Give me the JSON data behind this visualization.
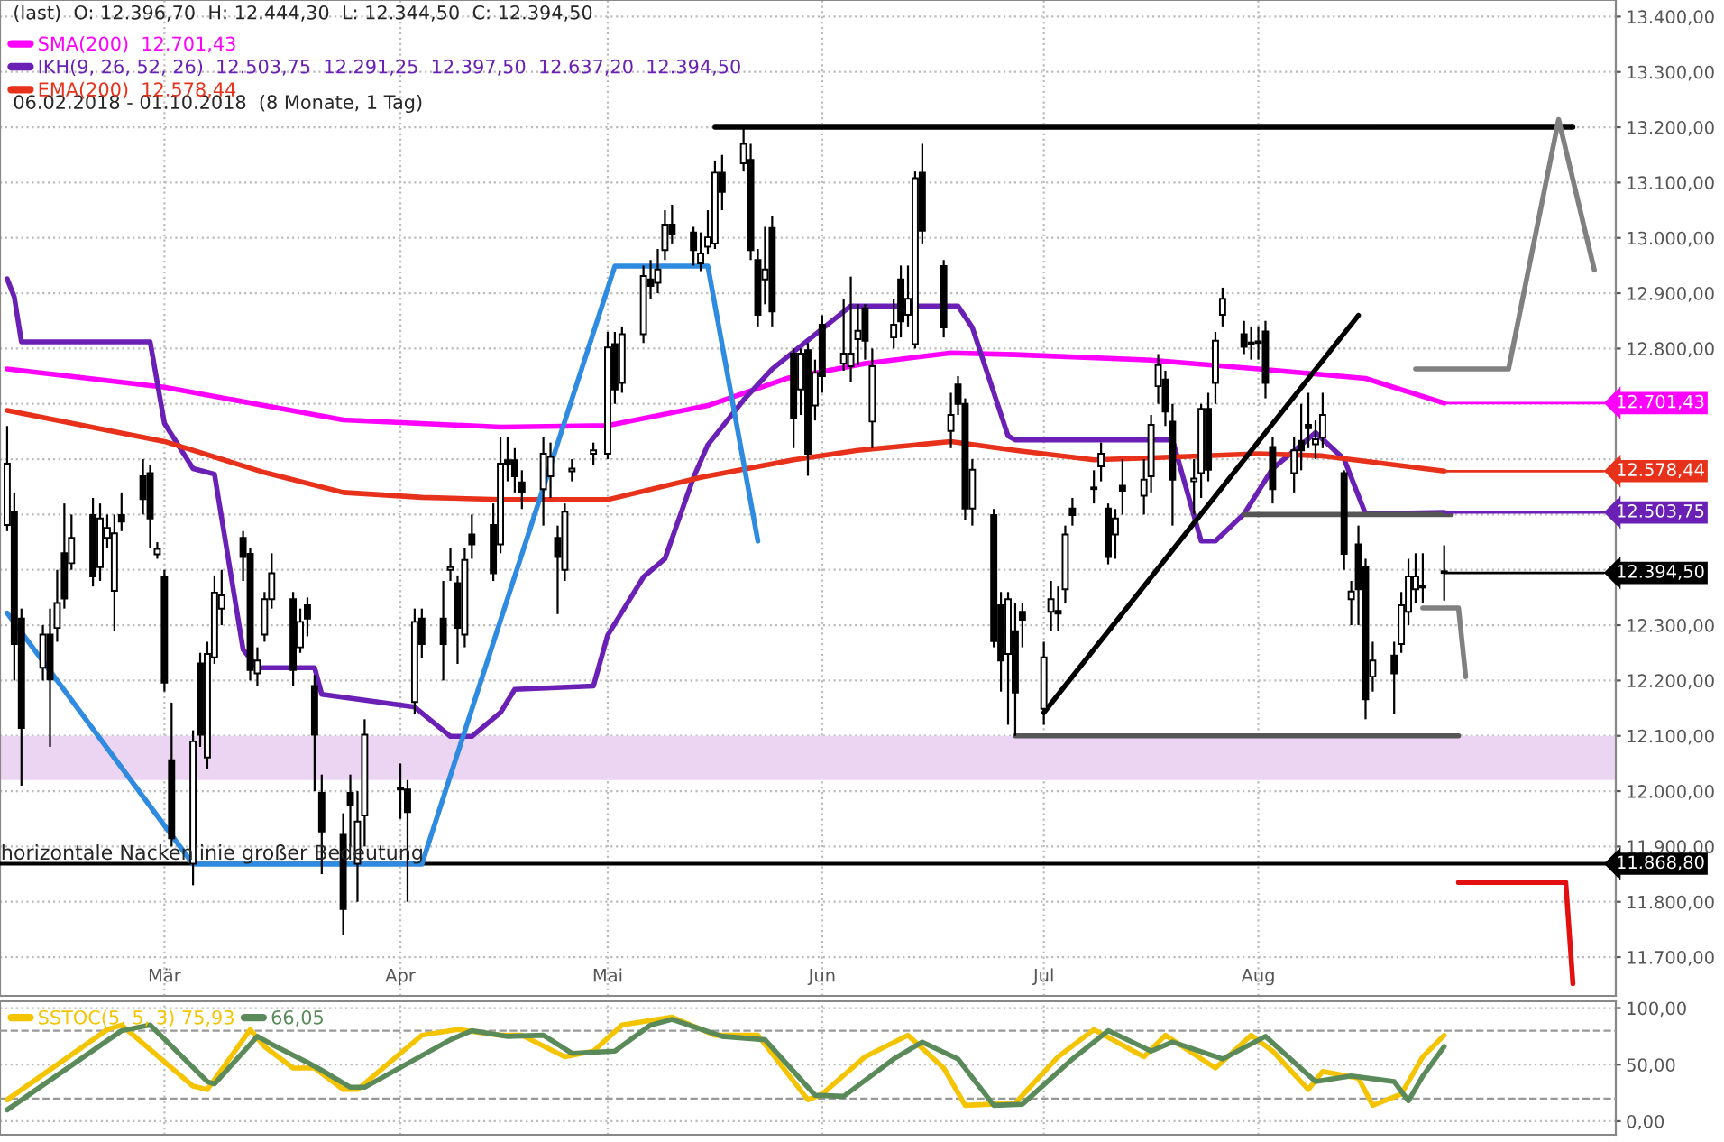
{
  "chart_data": [
    {
      "type": "candlestick",
      "title": "(last)  O: 12.396,70  H: 12.444,30  L: 12.344,50  C: 12.394,50",
      "subtitle": "06.02.2018 - 01.10.2018  (8 Monate, 1 Tag)",
      "x": [
        "2018-02-07",
        "2018-02-08",
        "2018-02-09",
        "2018-02-12",
        "2018-02-13",
        "2018-02-14",
        "2018-02-15",
        "2018-02-16",
        "2018-02-19",
        "2018-02-20",
        "2018-02-21",
        "2018-02-22",
        "2018-02-23",
        "2018-02-26",
        "2018-02-27",
        "2018-02-28",
        "2018-03-01",
        "2018-03-02",
        "2018-03-05",
        "2018-03-06",
        "2018-03-07",
        "2018-03-08",
        "2018-03-09",
        "2018-03-12",
        "2018-03-13",
        "2018-03-14",
        "2018-03-15",
        "2018-03-16",
        "2018-03-19",
        "2018-03-20",
        "2018-03-21",
        "2018-03-22",
        "2018-03-23",
        "2018-03-26",
        "2018-03-27",
        "2018-03-28",
        "2018-03-29",
        "2018-04-03",
        "2018-04-04",
        "2018-04-05",
        "2018-04-06",
        "2018-04-09",
        "2018-04-10",
        "2018-04-11",
        "2018-04-12",
        "2018-04-13",
        "2018-04-16",
        "2018-04-17",
        "2018-04-18",
        "2018-04-19",
        "2018-04-20",
        "2018-04-23",
        "2018-04-24",
        "2018-04-25",
        "2018-04-26",
        "2018-04-27",
        "2018-04-30",
        "2018-05-02",
        "2018-05-03",
        "2018-05-04",
        "2018-05-07",
        "2018-05-08",
        "2018-05-09",
        "2018-05-10",
        "2018-05-11",
        "2018-05-14",
        "2018-05-15",
        "2018-05-16",
        "2018-05-17",
        "2018-05-18",
        "2018-05-21",
        "2018-05-22",
        "2018-05-23",
        "2018-05-24",
        "2018-05-25",
        "2018-05-28",
        "2018-05-29",
        "2018-05-30",
        "2018-05-31",
        "2018-06-01",
        "2018-06-04",
        "2018-06-05",
        "2018-06-06",
        "2018-06-07",
        "2018-06-08",
        "2018-06-11",
        "2018-06-12",
        "2018-06-13",
        "2018-06-14",
        "2018-06-15",
        "2018-06-18",
        "2018-06-19",
        "2018-06-20",
        "2018-06-21",
        "2018-06-22",
        "2018-06-25",
        "2018-06-26",
        "2018-06-27",
        "2018-06-28",
        "2018-06-29",
        "2018-07-02",
        "2018-07-03",
        "2018-07-04",
        "2018-07-05",
        "2018-07-06",
        "2018-07-09",
        "2018-07-10",
        "2018-07-11",
        "2018-07-12",
        "2018-07-13",
        "2018-07-16",
        "2018-07-17",
        "2018-07-18",
        "2018-07-19",
        "2018-07-20",
        "2018-07-23",
        "2018-07-24",
        "2018-07-25",
        "2018-07-26",
        "2018-07-27",
        "2018-07-30",
        "2018-07-31",
        "2018-08-01",
        "2018-08-02",
        "2018-08-03",
        "2018-08-06",
        "2018-08-07",
        "2018-08-08",
        "2018-08-09",
        "2018-08-10",
        "2018-08-13",
        "2018-08-14",
        "2018-08-15",
        "2018-08-16",
        "2018-08-17",
        "2018-08-20",
        "2018-08-21",
        "2018-08-22",
        "2018-08-23",
        "2018-08-24",
        "2018-08-27"
      ],
      "ohlc": [
        [
          12481,
          12660,
          12470,
          12592
        ],
        [
          12505,
          12540,
          12200,
          12266
        ],
        [
          12312,
          12330,
          12010,
          12114
        ],
        [
          12223,
          12300,
          12200,
          12283
        ],
        [
          12283,
          12330,
          12080,
          12202
        ],
        [
          12295,
          12400,
          12270,
          12340
        ],
        [
          12430,
          12520,
          12330,
          12348
        ],
        [
          12412,
          12500,
          12400,
          12458
        ],
        [
          12499,
          12530,
          12370,
          12388
        ],
        [
          12405,
          12520,
          12380,
          12493
        ],
        [
          12458,
          12500,
          12440,
          12476
        ],
        [
          12362,
          12500,
          12290,
          12466
        ],
        [
          12499,
          12540,
          12470,
          12487
        ],
        [
          12569,
          12600,
          12500,
          12528
        ],
        [
          12575,
          12590,
          12440,
          12493
        ],
        [
          12428,
          12450,
          12420,
          12438
        ],
        [
          12388,
          12400,
          12180,
          12196
        ],
        [
          12056,
          12160,
          11900,
          11915
        ],
        [
          11869,
          12110,
          11830,
          12090
        ],
        [
          12231,
          12250,
          12080,
          12102
        ],
        [
          12061,
          12270,
          12040,
          12248
        ],
        [
          12242,
          12390,
          12230,
          12359
        ],
        [
          12330,
          12400,
          12300,
          12354
        ],
        [
          12458,
          12470,
          12380,
          12423
        ],
        [
          12429,
          12440,
          12200,
          12219
        ],
        [
          12213,
          12260,
          12190,
          12236
        ],
        [
          12283,
          12360,
          12270,
          12347
        ],
        [
          12347,
          12430,
          12330,
          12394
        ],
        [
          12347,
          12360,
          12190,
          12219
        ],
        [
          12260,
          12330,
          12250,
          12306
        ],
        [
          12336,
          12350,
          12280,
          12312
        ],
        [
          12190,
          12210,
          12000,
          12102
        ],
        [
          11997,
          12030,
          11850,
          11927
        ],
        [
          11921,
          11960,
          11740,
          11787
        ],
        [
          11997,
          12030,
          11900,
          11974
        ],
        [
          11869,
          12000,
          11800,
          11945
        ],
        [
          11956,
          12130,
          11900,
          12102
        ],
        [
          12003,
          12050,
          11950,
          12004
        ],
        [
          12003,
          12020,
          11800,
          11962
        ],
        [
          12161,
          12330,
          12140,
          12306
        ],
        [
          12312,
          12330,
          12240,
          12266
        ],
        [
          12312,
          12380,
          12200,
          12266
        ],
        [
          12400,
          12440,
          12380,
          12405
        ],
        [
          12376,
          12390,
          12230,
          12295
        ],
        [
          12283,
          12440,
          12260,
          12418
        ],
        [
          12464,
          12500,
          12420,
          12446
        ],
        [
          12481,
          12520,
          12380,
          12394
        ],
        [
          12446,
          12640,
          12430,
          12592
        ],
        [
          12598,
          12640,
          12560,
          12592
        ],
        [
          12598,
          12620,
          12540,
          12569
        ],
        [
          12558,
          12580,
          12510,
          12540
        ],
        [
          12546,
          12640,
          12480,
          12610
        ],
        [
          12569,
          12630,
          12530,
          12604
        ],
        [
          12458,
          12480,
          12320,
          12423
        ],
        [
          12400,
          12520,
          12380,
          12505
        ],
        [
          12578,
          12600,
          12560,
          12583
        ],
        [
          12610,
          12630,
          12590,
          12616
        ],
        [
          12610,
          12830,
          12600,
          12802
        ],
        [
          12808,
          12830,
          12700,
          12726
        ],
        [
          12738,
          12840,
          12720,
          12826
        ],
        [
          12826,
          12950,
          12810,
          12931
        ],
        [
          12925,
          12960,
          12890,
          12913
        ],
        [
          12919,
          12980,
          12900,
          12943
        ],
        [
          12978,
          13050,
          12960,
          13024
        ],
        [
          13024,
          13060,
          12990,
          13007
        ],
        [
          13010,
          13020,
          12950,
          12978
        ],
        [
          12954,
          13010,
          12940,
          12972
        ],
        [
          12984,
          13050,
          12970,
          13001
        ],
        [
          12990,
          13140,
          12980,
          13118
        ],
        [
          13118,
          13150,
          13050,
          13083
        ],
        [
          13135,
          13200,
          13120,
          13170
        ],
        [
          13141,
          13170,
          12960,
          12978
        ],
        [
          12960,
          12980,
          12840,
          12861
        ],
        [
          12925,
          13020,
          12880,
          12943
        ],
        [
          13018,
          13040,
          12840,
          12867
        ],
        [
          12791,
          12800,
          12620,
          12674
        ],
        [
          12726,
          12800,
          12680,
          12791
        ],
        [
          12797,
          12810,
          12570,
          12610
        ],
        [
          12697,
          12780,
          12670,
          12756
        ],
        [
          12843,
          12860,
          12720,
          12750
        ],
        [
          12773,
          12890,
          12760,
          12791
        ],
        [
          12768,
          12930,
          12740,
          12791
        ],
        [
          12817,
          12880,
          12770,
          12832
        ],
        [
          12873,
          12880,
          12780,
          12814
        ],
        [
          12668,
          12800,
          12620,
          12768
        ],
        [
          12820,
          12890,
          12800,
          12843
        ],
        [
          12925,
          12950,
          12820,
          12849
        ],
        [
          12861,
          12950,
          12840,
          12890
        ],
        [
          12808,
          13120,
          12800,
          13108
        ],
        [
          13118,
          13170,
          12990,
          13013
        ],
        [
          12949,
          12960,
          12820,
          12838
        ],
        [
          12651,
          12720,
          12620,
          12680
        ],
        [
          12735,
          12750,
          12680,
          12700
        ],
        [
          12700,
          12710,
          12490,
          12511
        ],
        [
          12511,
          12600,
          12480,
          12581
        ],
        [
          12499,
          12510,
          12260,
          12271
        ],
        [
          12336,
          12360,
          12180,
          12236
        ],
        [
          12248,
          12360,
          12120,
          12347
        ],
        [
          12289,
          12340,
          12100,
          12178
        ],
        [
          12324,
          12340,
          12260,
          12310
        ],
        [
          12149,
          12270,
          12120,
          12242
        ],
        [
          12324,
          12380,
          12290,
          12347
        ],
        [
          12326,
          12370,
          12290,
          12321
        ],
        [
          12365,
          12480,
          12340,
          12464
        ],
        [
          12511,
          12530,
          12480,
          12499
        ],
        [
          12546,
          12580,
          12520,
          12547
        ],
        [
          12587,
          12630,
          12560,
          12610
        ],
        [
          12511,
          12520,
          12410,
          12423
        ],
        [
          12464,
          12510,
          12420,
          12493
        ],
        [
          12552,
          12600,
          12500,
          12543
        ],
        [
          12534,
          12600,
          12500,
          12563
        ],
        [
          12569,
          12680,
          12540,
          12662
        ],
        [
          12732,
          12790,
          12700,
          12770
        ],
        [
          12744,
          12760,
          12660,
          12686
        ],
        [
          12668,
          12700,
          12480,
          12563
        ],
        [
          12560,
          12600,
          12500,
          12565
        ],
        [
          12575,
          12700,
          12530,
          12691
        ],
        [
          12691,
          12720,
          12560,
          12581
        ],
        [
          12738,
          12830,
          12700,
          12814
        ],
        [
          12861,
          12910,
          12840,
          12890
        ],
        [
          12826,
          12850,
          12790,
          12803
        ],
        [
          12808,
          12840,
          12780,
          12809
        ],
        [
          12810,
          12840,
          12780,
          12812
        ],
        [
          12831,
          12850,
          12710,
          12738
        ],
        [
          12622,
          12640,
          12520,
          12546
        ],
        [
          12575,
          12640,
          12540,
          12616
        ],
        [
          12633,
          12700,
          12580,
          12616
        ],
        [
          12662,
          12720,
          12620,
          12656
        ],
        [
          12627,
          12670,
          12600,
          12636
        ],
        [
          12639,
          12720,
          12620,
          12680
        ],
        [
          12575,
          12580,
          12400,
          12429
        ],
        [
          12347,
          12380,
          12300,
          12361
        ],
        [
          12446,
          12480,
          12300,
          12365
        ],
        [
          12406,
          12420,
          12130,
          12166
        ],
        [
          12207,
          12270,
          12180,
          12236
        ],
        [
          12245,
          12270,
          12140,
          12213
        ],
        [
          12266,
          12360,
          12250,
          12336
        ],
        [
          12324,
          12420,
          12300,
          12388
        ],
        [
          12365,
          12430,
          12340,
          12388
        ],
        [
          12370,
          12430,
          12340,
          12368
        ],
        [
          12396.7,
          12444.3,
          12344.5,
          12394.5
        ]
      ],
      "series": [
        {
          "type": "line",
          "name": "SMA(200)  12.701,43",
          "color": "#ff00ff",
          "x": [
            "2018-02-07",
            "2018-03-01",
            "2018-03-26",
            "2018-04-17",
            "2018-05-02",
            "2018-05-16",
            "2018-05-27",
            "2018-06-07",
            "2018-06-19",
            "2018-06-28",
            "2018-07-17",
            "2018-08-01",
            "2018-08-16",
            "2018-08-27"
          ],
          "values": [
            12763,
            12730,
            12671,
            12658,
            12661,
            12697,
            12746,
            12773,
            12792,
            12789,
            12779,
            12763,
            12746,
            12701.43
          ],
          "value_labels": [
            null,
            null,
            null,
            null,
            null,
            null,
            null,
            null,
            null,
            null,
            null,
            null,
            null,
            "12.701,43"
          ]
        },
        {
          "type": "line",
          "name": "IKH(9, 26, 52, 26)  12.503,75  12.291,25  12.397,50  12.637,20  12.394,50",
          "color": "#6a1fb5",
          "x": [
            "2018-02-07",
            "2018-02-08",
            "2018-02-09",
            "2018-02-27",
            "2018-03-01",
            "2018-03-05",
            "2018-03-08",
            "2018-03-12",
            "2018-03-14",
            "2018-03-22",
            "2018-03-23",
            "2018-04-05",
            "2018-04-10",
            "2018-04-13",
            "2018-04-17",
            "2018-04-19",
            "2018-04-30",
            "2018-05-02",
            "2018-05-07",
            "2018-05-10",
            "2018-05-14",
            "2018-05-16",
            "2018-05-21",
            "2018-05-25",
            "2018-06-05",
            "2018-06-20",
            "2018-06-22",
            "2018-06-27",
            "2018-06-28",
            "2018-07-20",
            "2018-07-24",
            "2018-07-26",
            "2018-07-30",
            "2018-08-03",
            "2018-08-07",
            "2018-08-09",
            "2018-08-13",
            "2018-08-16",
            "2018-08-27"
          ],
          "values": [
            12926,
            12893,
            12812,
            12812,
            12665,
            12583,
            12573,
            12256,
            12223,
            12223,
            12175,
            12152,
            12099,
            12099,
            12142,
            12184,
            12190,
            12282,
            12387,
            12420,
            12567,
            12626,
            12707,
            12763,
            12877,
            12877,
            12838,
            12642,
            12635,
            12635,
            12452,
            12452,
            12501,
            12583,
            12626,
            12648,
            12600,
            12501,
            12503.75
          ],
          "value_labels": [
            null,
            null,
            null,
            null,
            null,
            null,
            null,
            null,
            null,
            null,
            null,
            null,
            null,
            null,
            null,
            null,
            null,
            null,
            null,
            null,
            null,
            null,
            null,
            null,
            null,
            null,
            null,
            null,
            null,
            null,
            null,
            null,
            null,
            null,
            null,
            null,
            null,
            null,
            "12.503,75"
          ]
        },
        {
          "type": "line",
          "name": "EMA(200)  12.578,44",
          "color": "#e8311a",
          "x": [
            "2018-02-07",
            "2018-03-01",
            "2018-03-15",
            "2018-03-26",
            "2018-04-06",
            "2018-04-17",
            "2018-05-02",
            "2018-05-15",
            "2018-05-28",
            "2018-06-06",
            "2018-06-19",
            "2018-06-28",
            "2018-07-09",
            "2018-07-18",
            "2018-08-01",
            "2018-08-10",
            "2018-08-27"
          ],
          "values": [
            12688,
            12632,
            12576,
            12540,
            12531,
            12527,
            12527,
            12567,
            12599,
            12616,
            12632,
            12616,
            12599,
            12603,
            12610,
            12606,
            12578.44
          ],
          "value_labels": [
            null,
            null,
            null,
            null,
            null,
            null,
            null,
            null,
            null,
            null,
            null,
            null,
            null,
            null,
            null,
            null,
            "12.578,44"
          ]
        },
        {
          "type": "line",
          "color": "#2e8be0",
          "x": [
            "2018-02-07",
            "2018-03-05",
            "2018-04-06",
            "2018-05-03",
            "2018-05-16",
            "2018-05-23"
          ],
          "values": [
            12322,
            11868,
            11868,
            12949,
            12949,
            12452
          ]
        },
        {
          "type": "line",
          "color": "#000000",
          "x": [
            "2018-05-17",
            "2018-09-14"
          ],
          "values": [
            13200,
            13200
          ]
        },
        {
          "type": "line",
          "color": "#000000",
          "x": [
            "2018-07-02",
            "2018-08-15"
          ],
          "values": [
            12142,
            12860
          ]
        },
        {
          "type": "line",
          "color": "#555555",
          "x": [
            "2018-06-28",
            "2018-08-29"
          ],
          "values": [
            12100,
            12100
          ]
        },
        {
          "type": "line",
          "color": "#555555",
          "x": [
            "2018-07-30",
            "2018-08-28"
          ],
          "values": [
            12500,
            12500
          ]
        },
        {
          "type": "line",
          "color": "#808080",
          "x": [
            "2018-08-23",
            "2018-09-05",
            "2018-09-12",
            "2018-09-17"
          ],
          "values": [
            12763,
            12763,
            13214,
            12942
          ]
        },
        {
          "type": "line",
          "color": "#808080",
          "x": [
            "2018-08-24",
            "2018-08-29",
            "2018-08-30"
          ],
          "values": [
            12331,
            12331,
            12207
          ]
        },
        {
          "type": "line",
          "color": "#e31010",
          "x": [
            "2018-08-29",
            "2018-09-13",
            "2018-09-14"
          ],
          "values": [
            11835,
            11835,
            11652
          ]
        }
      ],
      "bands": [
        {
          "axis": "y",
          "from": 12020,
          "to": 12100,
          "color": "#ecd5f2"
        }
      ],
      "ref_lines": [
        {
          "axis": "y",
          "value": 11868.8,
          "label": "horizontale Nackenlinie großer Bedeutung",
          "color": "#000000"
        }
      ],
      "annotations": [
        {
          "text": "12.394,50",
          "x": "2018-08-27",
          "y": 12394.5
        },
        {
          "text": "11.868,80",
          "x": "2018-09-20",
          "y": 11868.8
        }
      ],
      "xlim": [
        "2018-02-06",
        "2018-09-20"
      ],
      "ylim": [
        11630,
        13430
      ],
      "xticks": [
        {
          "value": "2018-03-01",
          "label": "Mär"
        },
        {
          "value": "2018-04-03",
          "label": "Apr"
        },
        {
          "value": "2018-05-02",
          "label": "Mai"
        },
        {
          "value": "2018-06-01",
          "label": "Jun"
        },
        {
          "value": "2018-07-02",
          "label": "Jul"
        },
        {
          "value": "2018-08-01",
          "label": "Aug"
        }
      ],
      "yticks": [
        {
          "value": 11700,
          "label": "11.700,00"
        },
        {
          "value": 11800,
          "label": "11.800,00"
        },
        {
          "value": 11900,
          "label": "11.900,00"
        },
        {
          "value": 12000,
          "label": "12.000,00"
        },
        {
          "value": 12100,
          "label": "12.100,00"
        },
        {
          "value": 12200,
          "label": "12.200,00"
        },
        {
          "value": 12300,
          "label": "12.300,00"
        },
        {
          "value": 12400,
          "label": null
        },
        {
          "value": 12500,
          "label": null
        },
        {
          "value": 12600,
          "label": null
        },
        {
          "value": 12700,
          "label": null
        },
        {
          "value": 12800,
          "label": "12.800,00"
        },
        {
          "value": 12900,
          "label": "12.900,00"
        },
        {
          "value": 13000,
          "label": "13.000,00"
        },
        {
          "value": 13100,
          "label": "13.100,00"
        },
        {
          "value": 13200,
          "label": "13.200,00"
        },
        {
          "value": 13300,
          "label": "13.300,00"
        },
        {
          "value": 13400,
          "label": "13.400,00"
        }
      ],
      "grid": true,
      "legend": "top left"
    },
    {
      "type": "line",
      "series": [
        {
          "name": "SSTOC(5, 5, 3) 75,93",
          "color": "#f5c400",
          "x": [
            "2018-02-07",
            "2018-02-21",
            "2018-02-23",
            "2018-03-05",
            "2018-03-07",
            "2018-03-13",
            "2018-03-15",
            "2018-03-19",
            "2018-03-22",
            "2018-03-26",
            "2018-03-28",
            "2018-04-06",
            "2018-04-11",
            "2018-04-17",
            "2018-04-20",
            "2018-04-26",
            "2018-04-30",
            "2018-05-04",
            "2018-05-11",
            "2018-05-17",
            "2018-05-23",
            "2018-05-30",
            "2018-06-01",
            "2018-06-07",
            "2018-06-13",
            "2018-06-18",
            "2018-06-21",
            "2018-06-28",
            "2018-07-04",
            "2018-07-09",
            "2018-07-16",
            "2018-07-19",
            "2018-07-26",
            "2018-07-31",
            "2018-08-03",
            "2018-08-08",
            "2018-08-10",
            "2018-08-15",
            "2018-08-17",
            "2018-08-21",
            "2018-08-24",
            "2018-08-27"
          ],
          "values": [
            19,
            81,
            85,
            31,
            28,
            81,
            66,
            47,
            47,
            28,
            28,
            76,
            81,
            76,
            76,
            57,
            62,
            85,
            92,
            76,
            76,
            19,
            24,
            57,
            76,
            47,
            14,
            16,
            57,
            81,
            57,
            76,
            47,
            76,
            62,
            28,
            44,
            38,
            14,
            24,
            57,
            76
          ]
        },
        {
          "name": "66,05",
          "color": "#5a8a5a",
          "x": [
            "2018-02-07",
            "2018-02-23",
            "2018-02-27",
            "2018-03-07",
            "2018-03-08",
            "2018-03-14",
            "2018-03-16",
            "2018-03-21",
            "2018-03-23",
            "2018-03-27",
            "2018-03-29",
            "2018-04-10",
            "2018-04-13",
            "2018-04-18",
            "2018-04-23",
            "2018-04-27",
            "2018-05-03",
            "2018-05-08",
            "2018-05-11",
            "2018-05-18",
            "2018-05-24",
            "2018-05-31",
            "2018-06-04",
            "2018-06-11",
            "2018-06-15",
            "2018-06-20",
            "2018-06-25",
            "2018-06-29",
            "2018-07-06",
            "2018-07-11",
            "2018-07-17",
            "2018-07-20",
            "2018-07-27",
            "2018-08-02",
            "2018-08-09",
            "2018-08-14",
            "2018-08-20",
            "2018-08-22",
            "2018-08-24",
            "2018-08-27"
          ],
          "values": [
            10,
            80,
            85,
            35,
            33,
            75,
            68,
            52,
            45,
            30,
            30,
            72,
            80,
            75,
            76,
            60,
            62,
            85,
            90,
            75,
            72,
            23,
            22,
            55,
            70,
            55,
            14,
            15,
            55,
            80,
            62,
            70,
            55,
            75,
            35,
            40,
            35,
            18,
            40,
            66
          ]
        }
      ],
      "ref_lines": [
        {
          "axis": "y",
          "value": 20,
          "color": "#999999",
          "line_style": "dashed"
        },
        {
          "axis": "y",
          "value": 80,
          "color": "#999999",
          "line_style": "dashed"
        }
      ],
      "xlim": [
        "2018-02-06",
        "2018-09-20"
      ],
      "ylim": [
        -12,
        106
      ],
      "xticks": [
        {
          "value": "2018-03-01",
          "label": null
        },
        {
          "value": "2018-04-03",
          "label": null
        },
        {
          "value": "2018-05-02",
          "label": null
        },
        {
          "value": "2018-06-01",
          "label": null
        },
        {
          "value": "2018-07-02",
          "label": null
        },
        {
          "value": "2018-08-01",
          "label": null
        }
      ],
      "yticks": [
        {
          "value": 0,
          "label": "0,00"
        },
        {
          "value": 50,
          "label": "50,00"
        },
        {
          "value": 100,
          "label": "100,00"
        }
      ],
      "tick_labels": "y",
      "grid": true,
      "legend": "top left"
    }
  ]
}
